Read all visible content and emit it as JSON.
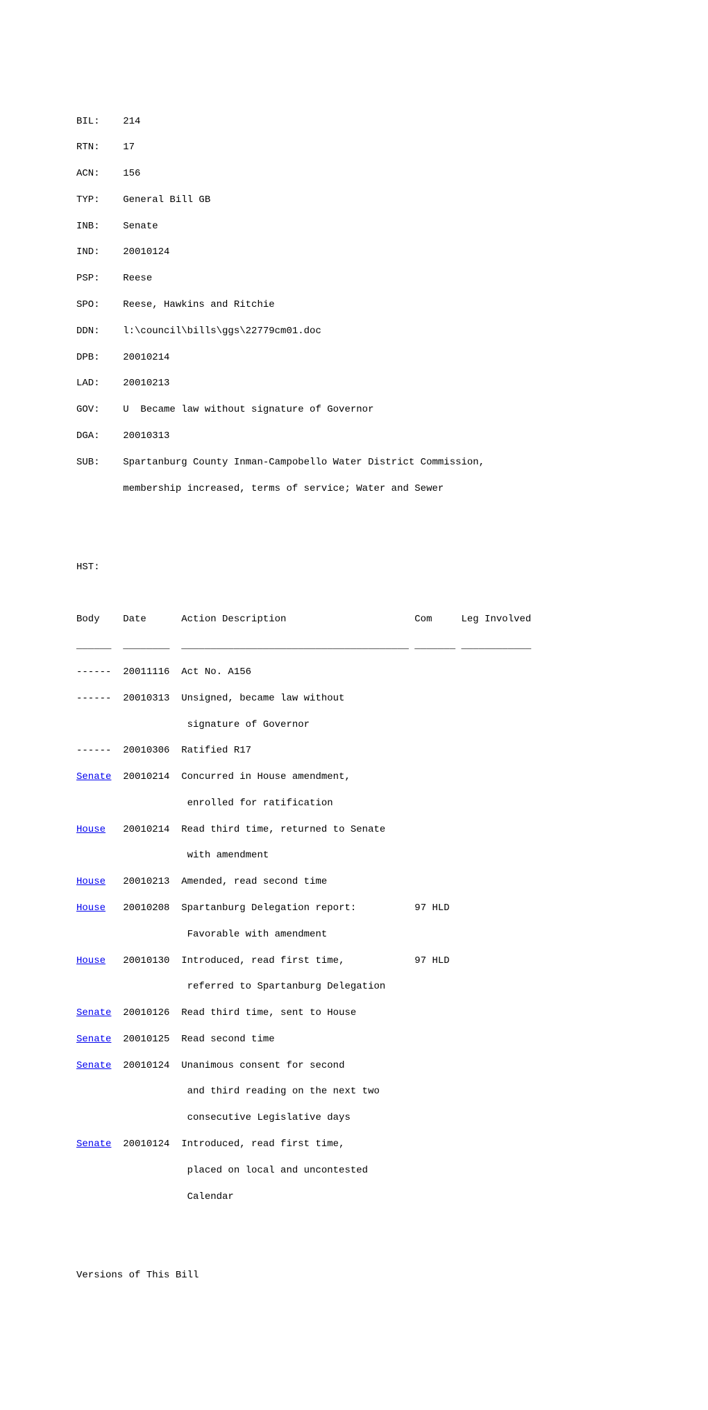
{
  "header": {
    "fields": [
      {
        "label": "BIL:",
        "value": "214"
      },
      {
        "label": "RTN:",
        "value": "17"
      },
      {
        "label": "ACN:",
        "value": "156"
      },
      {
        "label": "TYP:",
        "value": "General Bill GB"
      },
      {
        "label": "INB:",
        "value": "Senate"
      },
      {
        "label": "IND:",
        "value": "20010124"
      },
      {
        "label": "PSP:",
        "value": "Reese"
      },
      {
        "label": "SPO:",
        "value": "Reese, Hawkins and Ritchie"
      },
      {
        "label": "DDN:",
        "value": "l:\\council\\bills\\ggs\\22779cm01.doc"
      },
      {
        "label": "DPB:",
        "value": "20010214"
      },
      {
        "label": "LAD:",
        "value": "20010213"
      },
      {
        "label": "GOV:",
        "value": "U  Became law without signature of Governor"
      },
      {
        "label": "DGA:",
        "value": "20010313"
      },
      {
        "label": "SUB:",
        "value": "Spartanburg County Inman-Campobello Water District Commission,\n        membership increased, terms of service; Water and Sewer"
      }
    ]
  },
  "hst_label": "HST:",
  "table": {
    "headers": {
      "body": "Body",
      "date": "Date",
      "action": "Action Description",
      "com": "Com",
      "leg": "Leg Involved"
    },
    "divider": {
      "body": "______",
      "date": "________",
      "action": "_______________________________________",
      "com": "_______",
      "leg": "____________"
    },
    "rows": [
      {
        "body": "------",
        "link": false,
        "date": "20011116",
        "action": "Act No. A156",
        "com": ""
      },
      {
        "body": "------",
        "link": false,
        "date": "20010313",
        "action": "Unsigned, became law without\n                   signature of Governor",
        "com": ""
      },
      {
        "body": "------",
        "link": false,
        "date": "20010306",
        "action": "Ratified R17",
        "com": ""
      },
      {
        "body": "Senate",
        "link": true,
        "date": "20010214",
        "action": "Concurred in House amendment,\n                   enrolled for ratification",
        "com": ""
      },
      {
        "body": "House",
        "link": true,
        "date": "20010214",
        "action": "Read third time, returned to Senate\n                   with amendment",
        "com": ""
      },
      {
        "body": "House",
        "link": true,
        "date": "20010213",
        "action": "Amended, read second time",
        "com": ""
      },
      {
        "body": "House",
        "link": true,
        "date": "20010208",
        "action": "Spartanburg Delegation report:\n                   Favorable with amendment",
        "com": "97 HLD"
      },
      {
        "body": "House",
        "link": true,
        "date": "20010130",
        "action": "Introduced, read first time,\n                   referred to Spartanburg Delegation",
        "com": "97 HLD"
      },
      {
        "body": "Senate",
        "link": true,
        "date": "20010126",
        "action": "Read third time, sent to House",
        "com": ""
      },
      {
        "body": "Senate",
        "link": true,
        "date": "20010125",
        "action": "Read second time",
        "com": ""
      },
      {
        "body": "Senate",
        "link": true,
        "date": "20010124",
        "action": "Unanimous consent for second\n                   and third reading on the next two\n                   consecutive Legislative days",
        "com": ""
      },
      {
        "body": "Senate",
        "link": true,
        "date": "20010124",
        "action": "Introduced, read first time,\n                   placed on local and uncontested\n                   Calendar",
        "com": ""
      }
    ]
  },
  "versions_label": "Versions of This Bill",
  "layout": {
    "col_body": 6,
    "col_date": 8,
    "pad_body_date": 2,
    "pad_date_action": 2,
    "col_action": 40,
    "col_com": 7
  }
}
